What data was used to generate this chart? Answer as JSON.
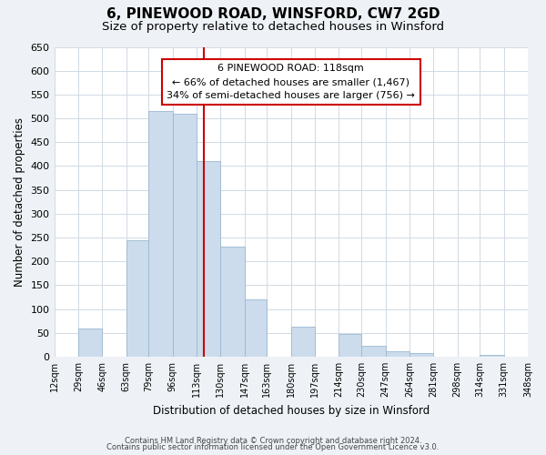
{
  "title": "6, PINEWOOD ROAD, WINSFORD, CW7 2GD",
  "subtitle": "Size of property relative to detached houses in Winsford",
  "xlabel": "Distribution of detached houses by size in Winsford",
  "ylabel": "Number of detached properties",
  "bin_edges": [
    12,
    29,
    46,
    63,
    79,
    96,
    113,
    130,
    147,
    163,
    180,
    197,
    214,
    230,
    247,
    264,
    281,
    298,
    314,
    331,
    348
  ],
  "bin_labels": [
    "12sqm",
    "29sqm",
    "46sqm",
    "63sqm",
    "79sqm",
    "96sqm",
    "113sqm",
    "130sqm",
    "147sqm",
    "163sqm",
    "180sqm",
    "197sqm",
    "214sqm",
    "230sqm",
    "247sqm",
    "264sqm",
    "281sqm",
    "298sqm",
    "314sqm",
    "331sqm",
    "348sqm"
  ],
  "counts": [
    0,
    60,
    0,
    245,
    515,
    510,
    410,
    230,
    120,
    0,
    63,
    0,
    47,
    23,
    12,
    8,
    0,
    0,
    4,
    0,
    3
  ],
  "bar_color": "#ccdcec",
  "bar_edge_color": "#9ab8d0",
  "vline_x": 118,
  "vline_color": "#cc0000",
  "ylim": [
    0,
    650
  ],
  "yticks": [
    0,
    50,
    100,
    150,
    200,
    250,
    300,
    350,
    400,
    450,
    500,
    550,
    600,
    650
  ],
  "footer1": "Contains HM Land Registry data © Crown copyright and database right 2024.",
  "footer2": "Contains public sector information licensed under the Open Government Licence v3.0.",
  "bg_color": "#eef2f6",
  "plot_bg_color": "#ffffff",
  "grid_color": "#d0dae4"
}
